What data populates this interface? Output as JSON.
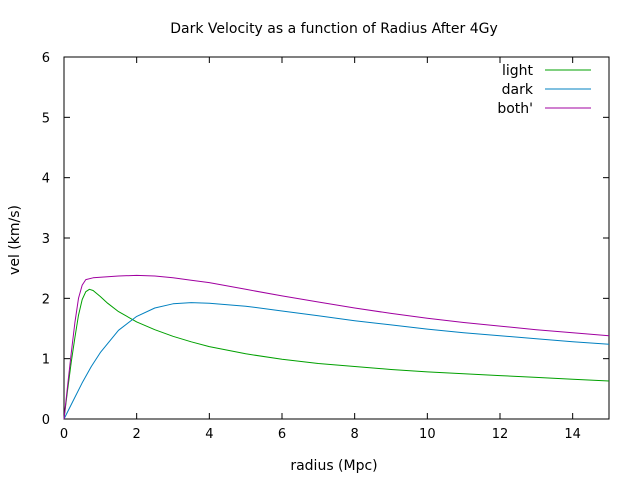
{
  "chart_data": {
    "type": "line",
    "title": "Dark Velocity as a function of Radius After 4Gy",
    "xlabel": "radius (Mpc)",
    "ylabel": "vel (km/s)",
    "xlim": [
      0,
      15
    ],
    "ylim": [
      0,
      6
    ],
    "xticks": [
      "0",
      "2",
      "4",
      "6",
      "8",
      "10",
      "12",
      "14"
    ],
    "yticks": [
      "0",
      "1",
      "2",
      "3",
      "4",
      "5",
      "6"
    ],
    "grid": false,
    "legend_position": "top-right",
    "series": [
      {
        "name": "light",
        "color": "#00a000",
        "x": [
          0,
          0.1,
          0.2,
          0.3,
          0.4,
          0.5,
          0.6,
          0.7,
          0.8,
          1.0,
          1.2,
          1.5,
          2,
          2.5,
          3,
          3.5,
          4,
          5,
          6,
          7,
          8,
          9,
          10,
          11,
          12,
          13,
          14,
          15
        ],
        "y": [
          0,
          0.48,
          0.95,
          1.35,
          1.72,
          1.98,
          2.11,
          2.15,
          2.13,
          2.03,
          1.92,
          1.78,
          1.61,
          1.48,
          1.37,
          1.28,
          1.2,
          1.08,
          0.99,
          0.92,
          0.87,
          0.82,
          0.78,
          0.75,
          0.72,
          0.69,
          0.66,
          0.63
        ]
      },
      {
        "name": "dark",
        "color": "#0080c0",
        "x": [
          0,
          0.25,
          0.5,
          0.75,
          1,
          1.5,
          2,
          2.5,
          3,
          3.5,
          4,
          5,
          6,
          7,
          8,
          9,
          10,
          11,
          12,
          13,
          14,
          15
        ],
        "y": [
          0,
          0.3,
          0.6,
          0.87,
          1.1,
          1.47,
          1.7,
          1.84,
          1.91,
          1.93,
          1.92,
          1.87,
          1.79,
          1.71,
          1.63,
          1.56,
          1.49,
          1.43,
          1.38,
          1.33,
          1.28,
          1.24
        ]
      },
      {
        "name": "both'",
        "color": "#a000a0",
        "x": [
          0,
          0.1,
          0.2,
          0.3,
          0.4,
          0.5,
          0.6,
          0.8,
          1,
          1.5,
          2,
          2.5,
          3,
          3.5,
          4,
          5,
          6,
          7,
          8,
          9,
          10,
          11,
          12,
          13,
          14,
          15
        ],
        "y": [
          0,
          0.55,
          1.1,
          1.6,
          2.0,
          2.22,
          2.31,
          2.34,
          2.35,
          2.37,
          2.38,
          2.37,
          2.34,
          2.3,
          2.26,
          2.15,
          2.04,
          1.94,
          1.84,
          1.75,
          1.67,
          1.6,
          1.54,
          1.48,
          1.43,
          1.38
        ]
      }
    ]
  }
}
